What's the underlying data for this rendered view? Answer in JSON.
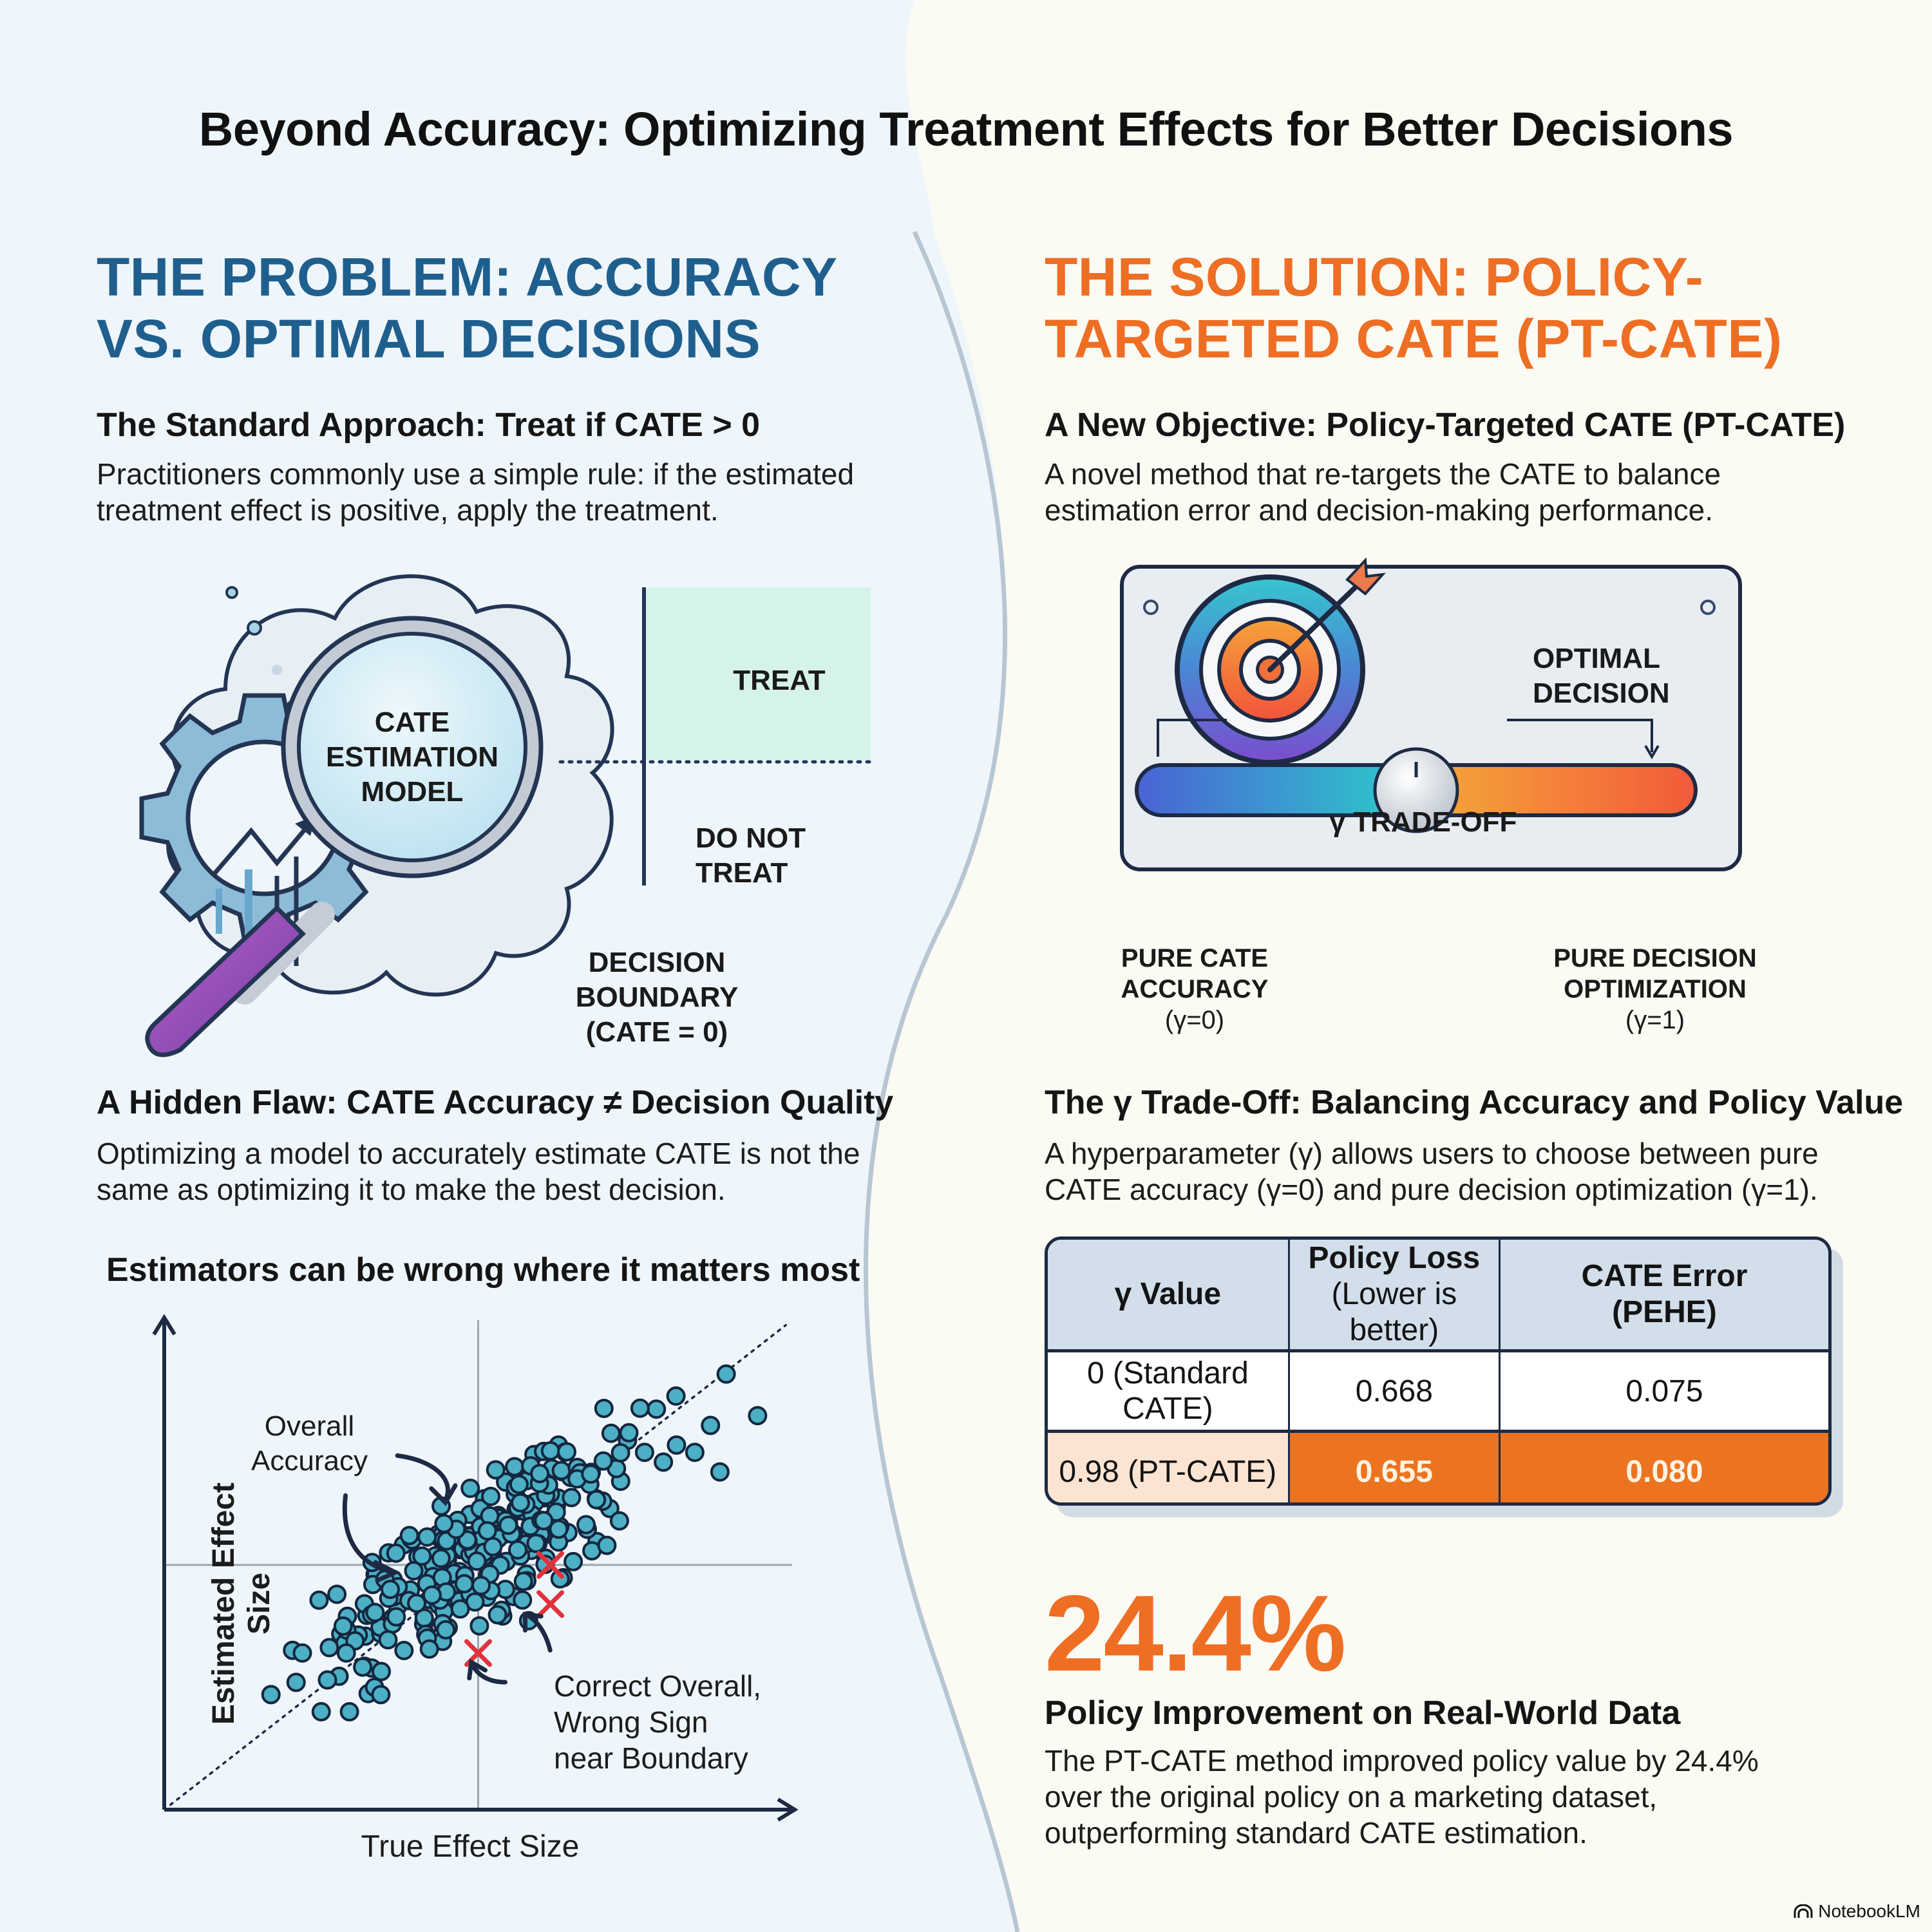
{
  "title": "Beyond Accuracy: Optimizing Treatment Effects for Better Decisions",
  "colors": {
    "problem_accent": "#1f5f8e",
    "solution_accent": "#ee6e23",
    "treat_region": "#d6f3ea",
    "scatter_point": "#4cafc4",
    "error_marker": "#e0323c",
    "highlight_cell": "#ec7420",
    "highlight_light": "#fbe4d2",
    "table_header": "#d2deea"
  },
  "problem": {
    "heading_line1": "THE PROBLEM: ACCURACY",
    "heading_line2": "VS. OPTIMAL DECISIONS",
    "standard": {
      "title": "The Standard Approach: Treat if CATE > 0",
      "body_line1": "Practitioners commonly use a simple rule: if the estimated",
      "body_line2": "treatment effect is positive, apply the treatment."
    },
    "illustration": {
      "lens_line1": "CATE",
      "lens_line2": "ESTIMATION",
      "lens_line3": "MODEL",
      "treat": "TREAT",
      "do_not_line1": "DO NOT",
      "do_not_line2": "TREAT",
      "boundary_line1": "DECISION",
      "boundary_line2": "BOUNDARY",
      "boundary_line3": "(CATE = 0)",
      "icons": [
        "gear-icon",
        "trend-chart-icon",
        "magnifier-icon",
        "cloud-icon"
      ]
    },
    "flaw": {
      "title": "A Hidden Flaw: CATE Accuracy ≠ Decision Quality",
      "body_line1": "Optimizing a model to accurately estimate CATE is not the",
      "body_line2": "same as optimizing it to make the best decision."
    }
  },
  "chart_data": {
    "type": "scatter",
    "title": "Estimators can be wrong where it matters most",
    "xlabel": "True Effect Size",
    "ylabel": "Estimated Effect Size",
    "xlim": [
      -1,
      1
    ],
    "ylim": [
      -1,
      1
    ],
    "units": "normalized (illustrative, no tick labels)",
    "grid": false,
    "reference_lines": {
      "x_zero": true,
      "y_zero": true,
      "diagonal_y_equals_x": true
    },
    "annotations": [
      {
        "text_line1": "Overall",
        "text_line2": "Accuracy",
        "target": "cluster"
      },
      {
        "text_line1": "Correct Overall,",
        "text_line2": "Wrong Sign",
        "text_line3": "near Boundary",
        "target": "error_markers"
      }
    ],
    "series": [
      {
        "name": "estimates",
        "marker": "circle",
        "cluster": {
          "center": [
            0.02,
            0.05
          ],
          "spread_along": 0.55,
          "spread_across": 0.1,
          "count": 260
        },
        "outliers": [
          [
            -0.66,
            -0.53
          ],
          [
            -0.58,
            -0.48
          ],
          [
            -0.48,
            -0.47
          ],
          [
            -0.5,
            -0.6
          ],
          [
            -0.41,
            -0.6
          ],
          [
            -0.42,
            -0.36
          ],
          [
            -0.43,
            -0.25
          ],
          [
            -0.56,
            -0.36
          ],
          [
            -0.33,
            -0.5
          ],
          [
            -0.31,
            -0.53
          ],
          [
            -0.45,
            -0.12
          ],
          [
            0.04,
            0.28
          ],
          [
            0.48,
            0.54
          ],
          [
            0.63,
            0.69
          ],
          [
            0.79,
            0.78
          ],
          [
            0.74,
            0.57
          ],
          [
            0.53,
            0.46
          ],
          [
            0.59,
            0.42
          ],
          [
            0.69,
            0.46
          ],
          [
            0.89,
            0.61
          ],
          [
            0.77,
            0.38
          ],
          [
            0.45,
            0.18
          ],
          [
            0.41,
            0.08
          ],
          [
            -0.28,
            -0.1
          ]
        ]
      },
      {
        "name": "wrong-sign errors",
        "marker": "x",
        "points": [
          [
            0.23,
            0.0
          ],
          [
            0.23,
            -0.16
          ],
          [
            0.0,
            -0.36
          ]
        ]
      }
    ]
  },
  "solution": {
    "heading_line1": "THE SOLUTION: POLICY-",
    "heading_line2": "TARGETED CATE (PT-CATE)",
    "objective": {
      "title": "A New Objective: Policy-Targeted CATE (PT-CATE)",
      "body_line1": "A novel method that re-targets the CATE to balance",
      "body_line2": "estimation error and decision-making performance."
    },
    "panel": {
      "optimal_line1": "OPTIMAL",
      "optimal_line2": "DECISION",
      "tradeoff_label": "γ TRADE-OFF",
      "slider_value": 0.5,
      "left_line1": "PURE CATE",
      "left_line2": "ACCURACY",
      "left_line3": "(γ=0)",
      "right_line1": "PURE DECISION",
      "right_line2": "OPTIMIZATION",
      "right_line3": "(γ=1)"
    },
    "tradeoff": {
      "title": "The γ Trade-Off: Balancing Accuracy and Policy Value",
      "body_line1": "A hyperparameter (γ) allows users to choose between pure",
      "body_line2": "CATE accuracy (γ=0) and pure decision optimization (γ=1)."
    },
    "table": {
      "headers": [
        {
          "line1": "γ Value",
          "line2": ""
        },
        {
          "line1": "Policy Loss",
          "line2": "(Lower is better)"
        },
        {
          "line1": "CATE Error",
          "line2": "(PEHE)"
        }
      ],
      "rows": [
        {
          "gamma": "0 (Standard CATE)",
          "policy_loss": "0.668",
          "cate_error": "0.075",
          "highlight": false
        },
        {
          "gamma": "0.98 (PT-CATE)",
          "policy_loss": "0.655",
          "cate_error": "0.080",
          "highlight": true
        }
      ]
    },
    "stat": {
      "value": "24.4%",
      "title": "Policy Improvement on Real-World Data",
      "body_line1": "The PT-CATE method improved policy value by 24.4%",
      "body_line2": "over the original policy on a marketing dataset,",
      "body_line3": "outperforming standard CATE estimation."
    }
  },
  "brand": {
    "label": "NotebookLM",
    "icon": "notebooklm-logo-icon"
  }
}
